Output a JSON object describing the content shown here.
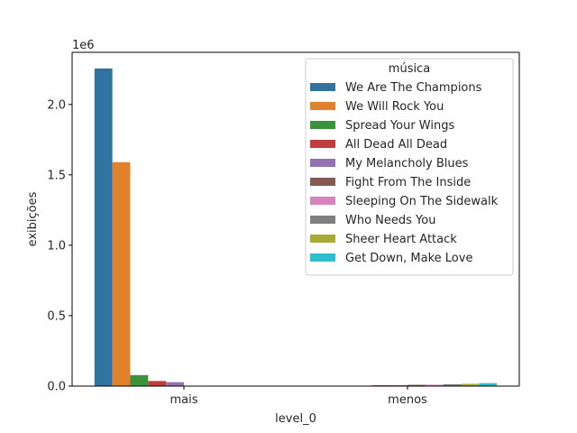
{
  "chart_data": {
    "type": "bar",
    "categories": [
      "mais",
      "menos"
    ],
    "xlabel": "level_0",
    "ylabel": "exibições",
    "y_offset_text": "1e6",
    "ylim": [
      0,
      2370000
    ],
    "yticks": [
      0,
      500000,
      1000000,
      1500000,
      2000000
    ],
    "ytick_labels": [
      "0.0",
      "0.5",
      "1.0",
      "1.5",
      "2.0"
    ],
    "grid": false,
    "legend": {
      "title": "música",
      "placement": "top-right"
    },
    "series": [
      {
        "name": "We Are The Champions",
        "color": "#3274a1",
        "values": [
          2255000,
          0
        ]
      },
      {
        "name": "We Will Rock You",
        "color": "#e1812c",
        "values": [
          1590000,
          0
        ]
      },
      {
        "name": "Spread Your Wings",
        "color": "#3a923a",
        "values": [
          78000,
          0
        ]
      },
      {
        "name": "All Dead All Dead",
        "color": "#c03d3e",
        "values": [
          36000,
          6000
        ]
      },
      {
        "name": "My Melancholy Blues",
        "color": "#9372b2",
        "values": [
          28000,
          7000
        ]
      },
      {
        "name": "Fight From The Inside",
        "color": "#845b53",
        "values": [
          0,
          9000
        ]
      },
      {
        "name": "Sleeping On The Sidewalk",
        "color": "#d684bd",
        "values": [
          0,
          10000
        ]
      },
      {
        "name": "Who Needs You",
        "color": "#7f7f7f",
        "values": [
          0,
          13000
        ]
      },
      {
        "name": "Sheer Heart Attack",
        "color": "#a9aa35",
        "values": [
          0,
          16000
        ]
      },
      {
        "name": "Get Down, Make Love",
        "color": "#2ebdcc",
        "values": [
          0,
          21000
        ]
      }
    ]
  }
}
